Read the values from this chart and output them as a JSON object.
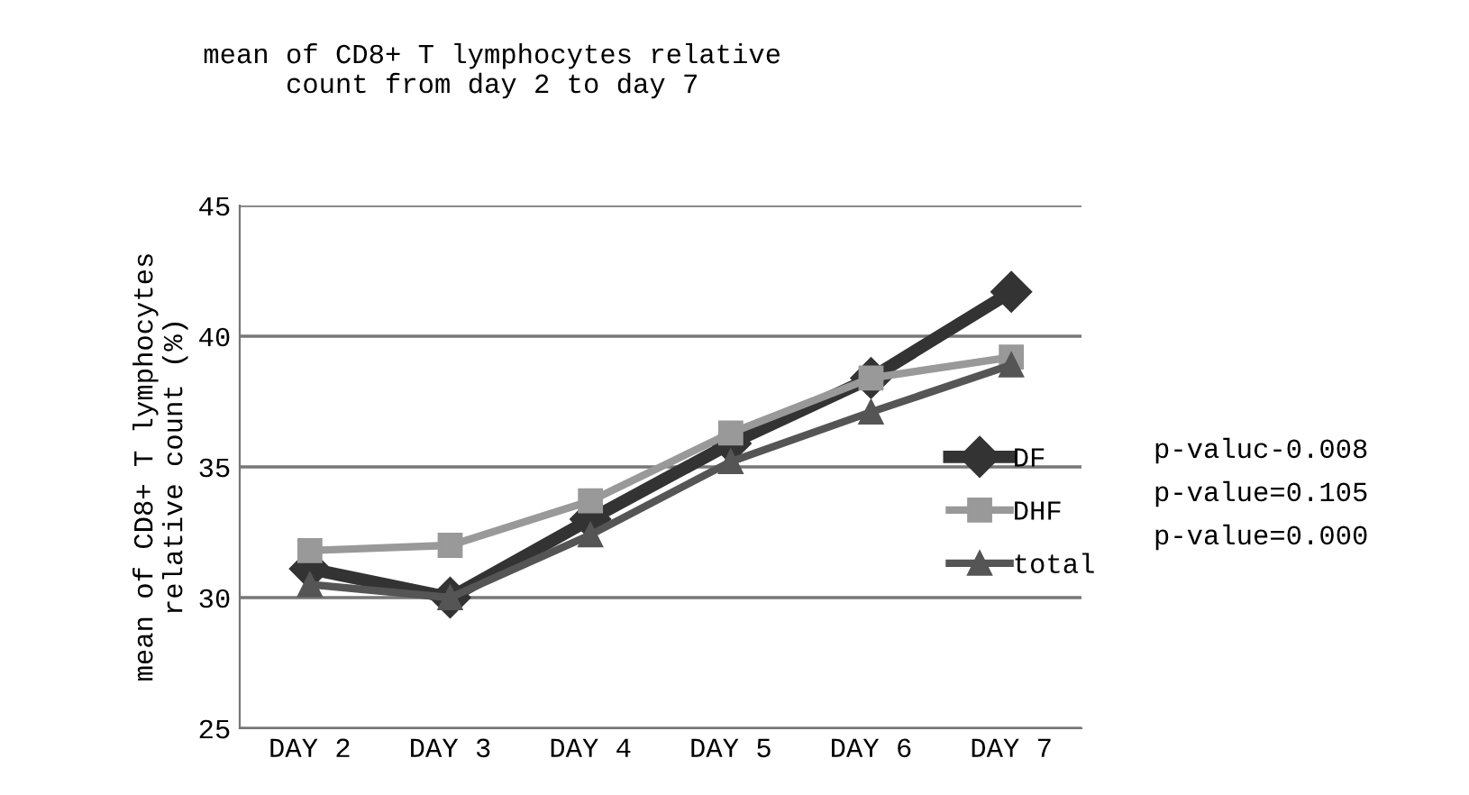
{
  "chart_data": {
    "type": "line",
    "title": "mean of CD8+ T lymphocytes relative\ncount from day 2 to day 7",
    "ylabel": "mean of CD8+ T lymphocytes\nrelative count (%)",
    "categories": [
      "DAY 2",
      "DAY 3",
      "DAY 4",
      "DAY 5",
      "DAY 6",
      "DAY 7"
    ],
    "series": [
      {
        "name": "DF",
        "color": "#333333",
        "marker": "diamond",
        "values": [
          31.1,
          30.0,
          33.0,
          35.9,
          38.4,
          41.7
        ]
      },
      {
        "name": "DHF",
        "color": "#999999",
        "marker": "square",
        "values": [
          31.8,
          32.0,
          33.7,
          36.3,
          38.4,
          39.2
        ]
      },
      {
        "name": "total",
        "color": "#555555",
        "marker": "triangle",
        "values": [
          30.5,
          30.0,
          32.4,
          35.2,
          37.1,
          38.9
        ]
      }
    ],
    "annotations": [
      "p-valuc-0.008",
      "p-value=0.105",
      "p-value=0.000"
    ],
    "ylim": [
      25,
      45
    ],
    "yticks": [
      25,
      30,
      35,
      40,
      45
    ],
    "grid": "y",
    "legend": "right",
    "line_style": "solid"
  }
}
